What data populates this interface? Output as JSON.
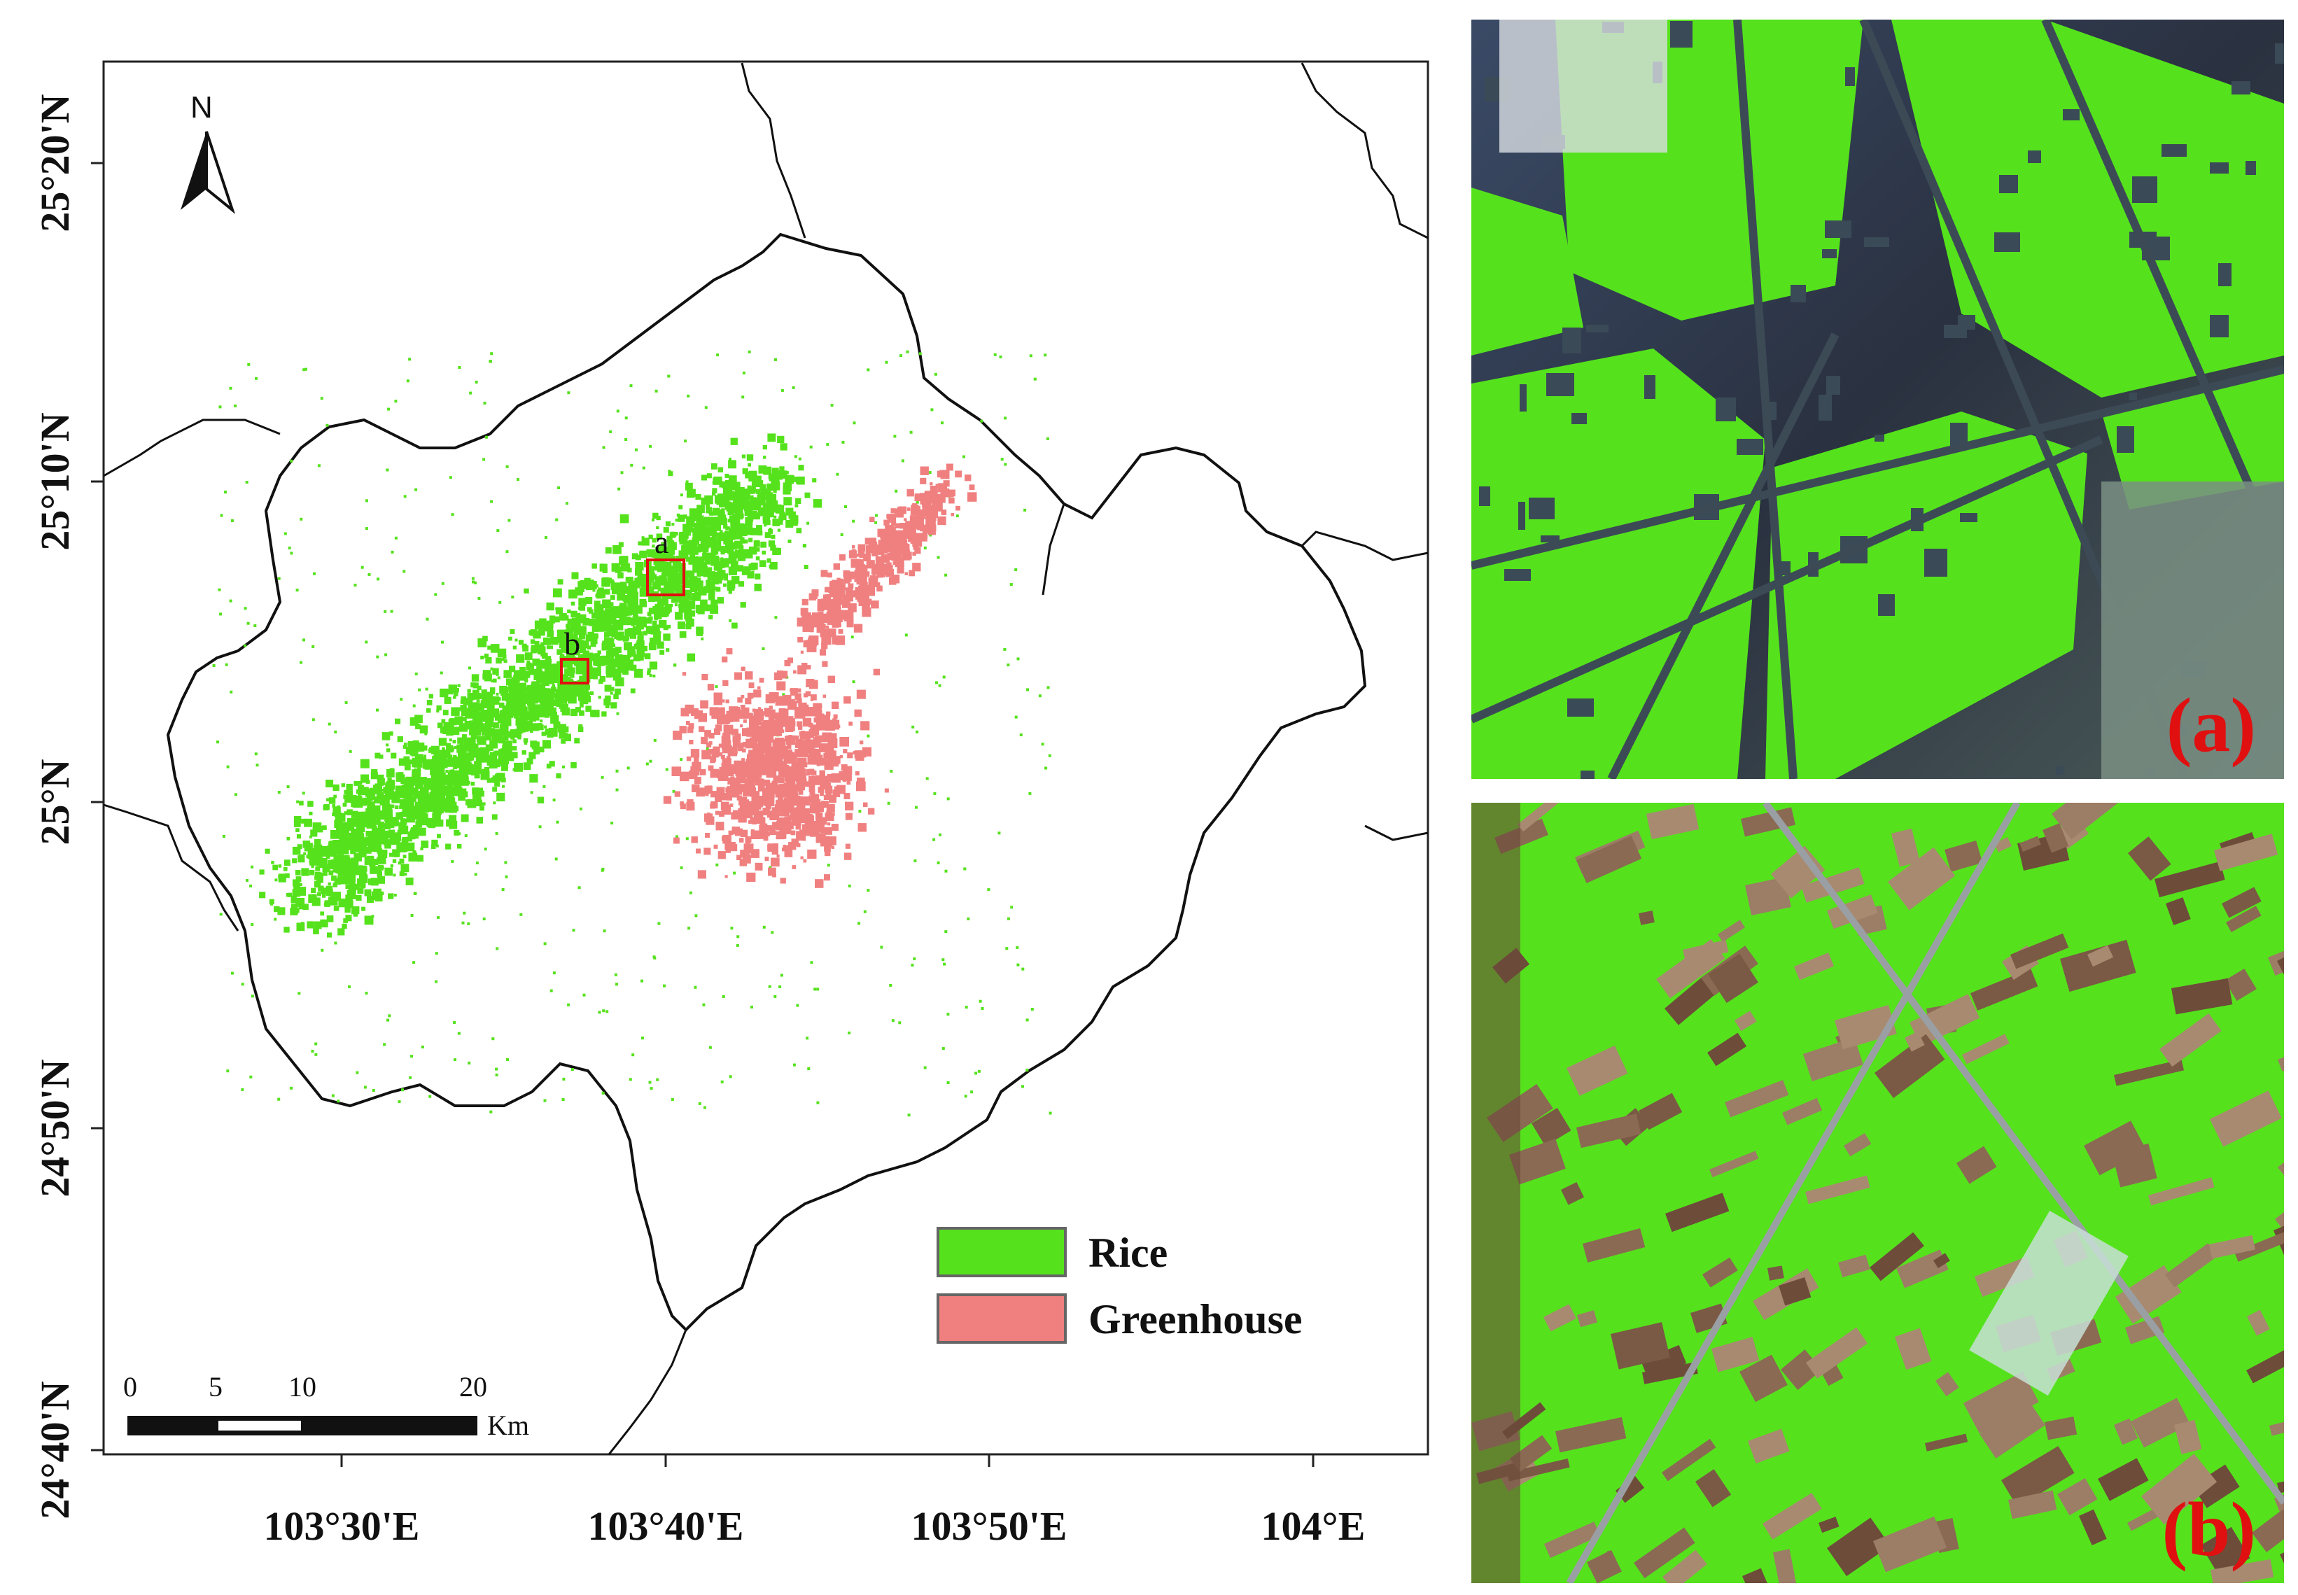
{
  "map": {
    "north_label": "N",
    "lon_ticks": [
      "103°30'E",
      "103°40'E",
      "103°50'E",
      "104°E"
    ],
    "lat_ticks": [
      "25°20'N",
      "25°10'N",
      "25°N",
      "24°50'N",
      "24°40'N"
    ],
    "sample_markers": [
      "a",
      "b"
    ],
    "legend": [
      {
        "label": "Rice",
        "color": "#55e21c"
      },
      {
        "label": "Greenhouse",
        "color": "#f08080"
      }
    ],
    "scale_bar": {
      "ticks": [
        "0",
        "5",
        "10",
        "20"
      ],
      "unit": "Km"
    },
    "colors": {
      "rice": "#55e21c",
      "greenhouse": "#f08080",
      "boundary": "#111111",
      "marker": "#e01010"
    }
  },
  "insets": [
    {
      "label": "(a)"
    },
    {
      "label": "(b)"
    }
  ]
}
